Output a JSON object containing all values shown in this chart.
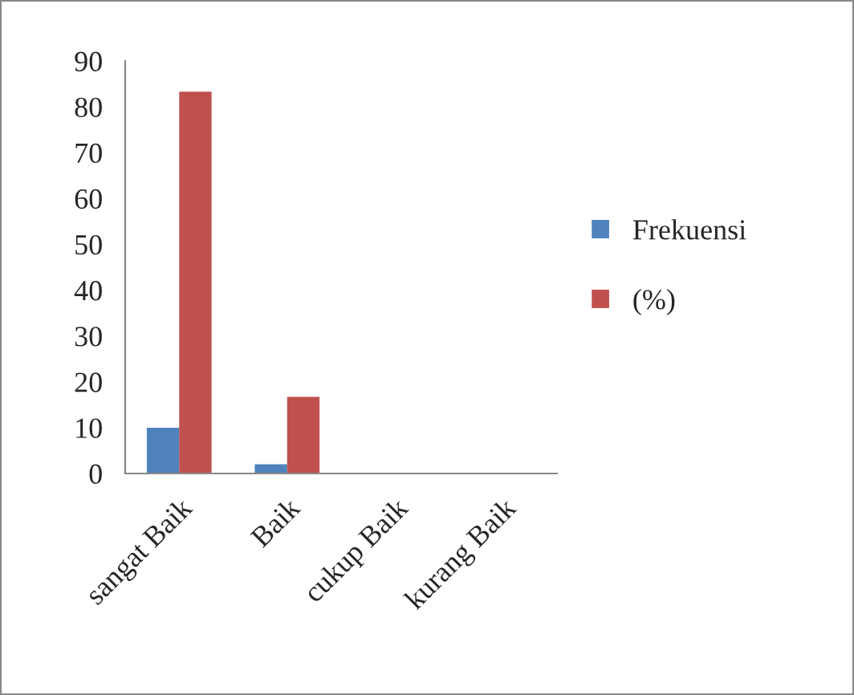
{
  "chart_data": {
    "type": "bar",
    "categories": [
      "sangat Baik",
      "Baik",
      "cukup Baik",
      "kurang Baik"
    ],
    "series": [
      {
        "name": "Frekuensi",
        "color": "#4f81bd",
        "values": [
          10,
          2,
          0,
          0
        ]
      },
      {
        "name": "(%)",
        "color": "#c0504d",
        "values": [
          83.3,
          16.7,
          0,
          0
        ]
      }
    ],
    "ylim": [
      0,
      90
    ],
    "yticks": [
      0,
      10,
      20,
      30,
      40,
      50,
      60,
      70,
      80,
      90
    ],
    "grid": false,
    "legend": "right"
  }
}
